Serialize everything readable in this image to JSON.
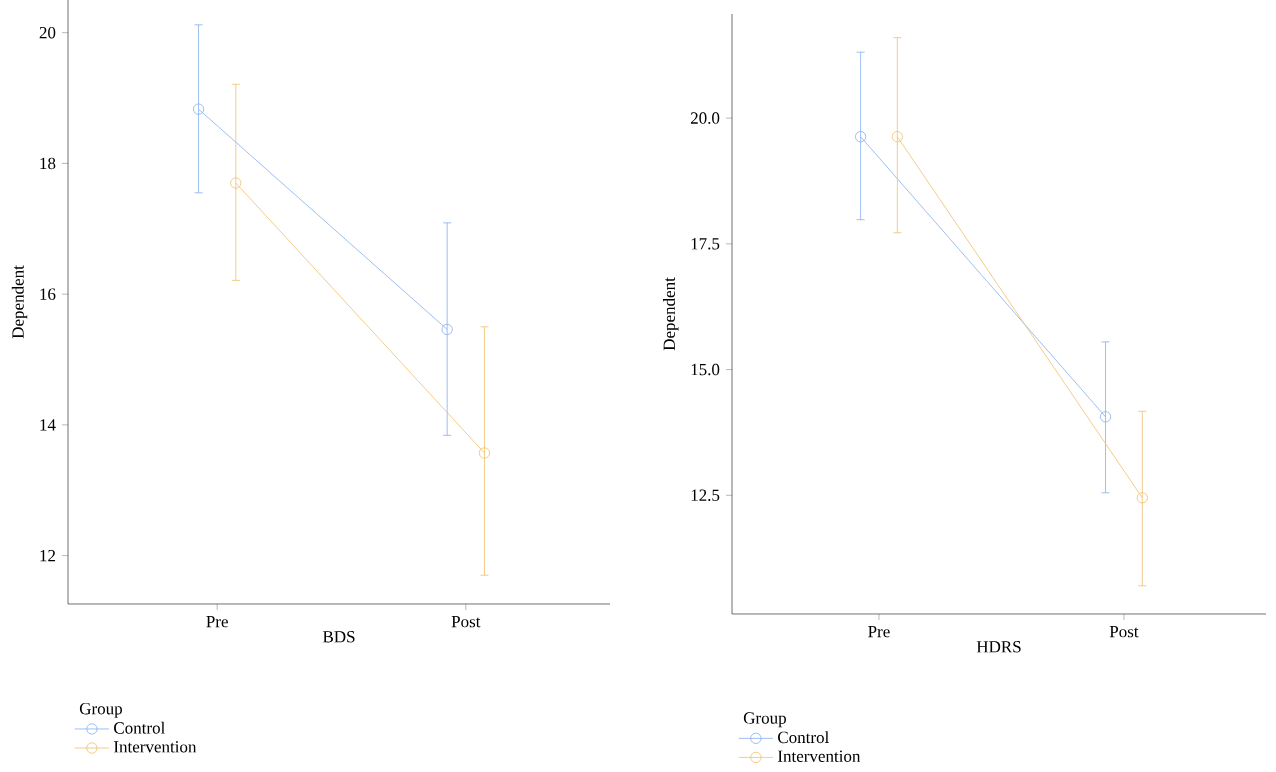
{
  "chart_data": [
    {
      "type": "line",
      "xlabel": "BDS",
      "ylabel": "Dependent",
      "legend_title": "Group",
      "categories": [
        "Pre",
        "Post"
      ],
      "ylim": [
        11.26,
        20.5
      ],
      "yticks": [
        12,
        14,
        16,
        18,
        20
      ],
      "marker": "circle",
      "line_style": "solid",
      "legend": "bottom",
      "grid": false,
      "series": [
        {
          "name": "Control",
          "color": "#84aef0",
          "values": [
            18.83,
            15.46
          ],
          "errors": [
            [
              17.55,
              20.12
            ],
            [
              13.84,
              17.09
            ]
          ]
        },
        {
          "name": "Intervention",
          "color": "#f0bf6c",
          "values": [
            17.7,
            13.57
          ],
          "errors": [
            [
              16.21,
              19.21
            ],
            [
              11.7,
              15.5
            ]
          ]
        }
      ]
    },
    {
      "type": "line",
      "xlabel": "HDRS",
      "ylabel": "Dependent",
      "legend_title": "Group",
      "categories": [
        "Pre",
        "Post"
      ],
      "ylim": [
        10.14,
        22.07
      ],
      "yticks": [
        {
          "value": 12.5,
          "label": "12.5"
        },
        {
          "value": 15,
          "label": "15.0"
        },
        {
          "value": 17.5,
          "label": "17.5"
        },
        {
          "value": 20,
          "label": "20.0"
        }
      ],
      "marker": "circle",
      "line_style": "solid",
      "legend": "bottom",
      "grid": false,
      "series": [
        {
          "name": "Control",
          "color": "#84aef0",
          "values": [
            19.63,
            14.06
          ],
          "errors": [
            [
              17.98,
              21.31
            ],
            [
              12.55,
              15.55
            ]
          ]
        },
        {
          "name": "Intervention",
          "color": "#f0bf6c",
          "values": [
            19.63,
            12.45
          ],
          "errors": [
            [
              17.72,
              21.6
            ],
            [
              10.7,
              14.17
            ]
          ]
        }
      ]
    }
  ]
}
